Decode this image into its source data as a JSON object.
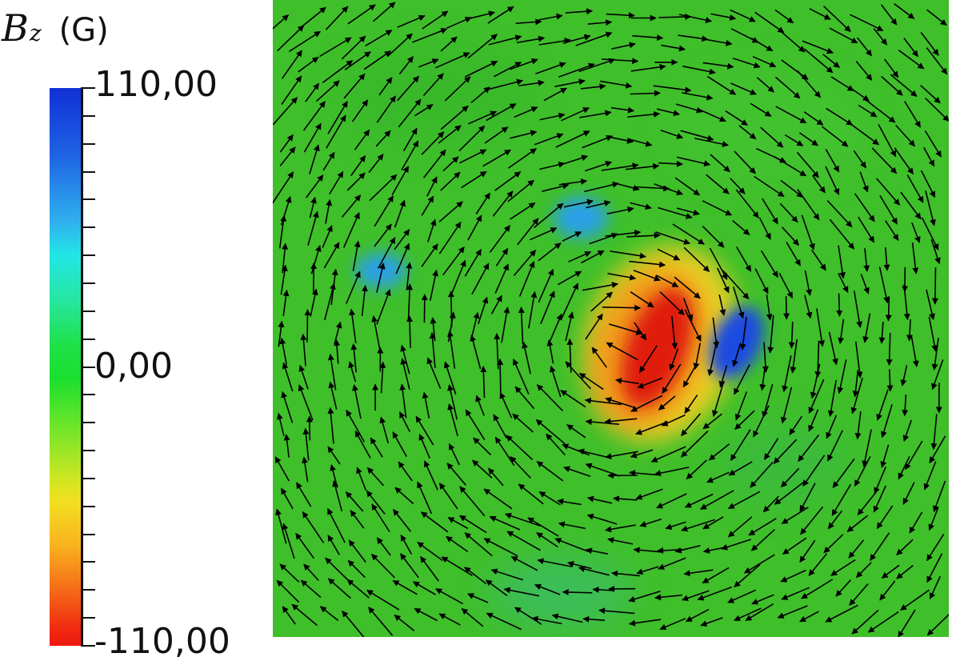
{
  "title": {
    "symbol": "B",
    "subscript": "z",
    "unit": "(G)"
  },
  "colorbar": {
    "max_label": "110,00",
    "mid_label": "0,00",
    "min_label": "-110,00",
    "value_max": 110,
    "value_min": -110,
    "colormap": "blue-cyan-green-yellow-red (rainbow, blue = positive)"
  },
  "field": {
    "background_color": "#3fbf2a",
    "arrow_color": "#000000",
    "content": "magnetic field vectors (black arrows) swirling clockwise around the center over a Bz color map",
    "features": [
      {
        "sign": "negative",
        "peak_value": -110,
        "color": "#e01a10"
      },
      {
        "sign": "positive",
        "peak_value": 100,
        "color": "#1a4be0"
      },
      {
        "sign": "positive",
        "peak_value": 55,
        "color": "#2aa0e8"
      },
      {
        "sign": "positive",
        "peak_value": 45,
        "color": "#2aa0e8"
      }
    ]
  }
}
